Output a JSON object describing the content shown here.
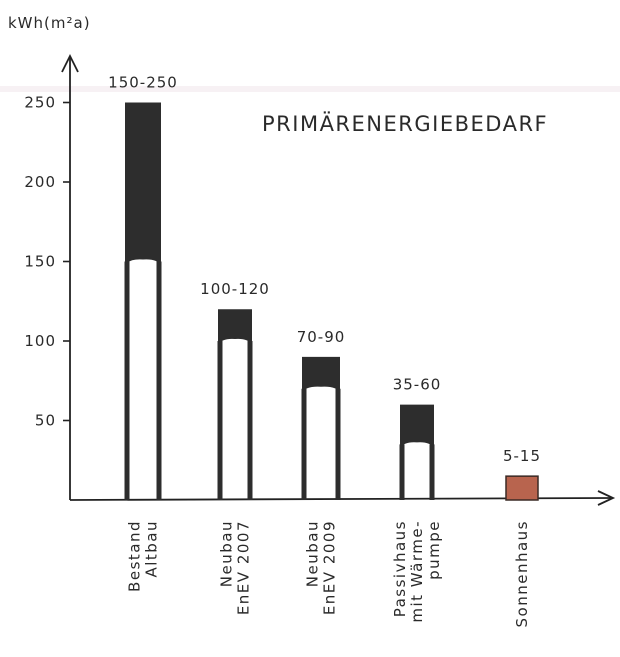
{
  "chart_data": {
    "type": "bar",
    "title": "PRIMÄRENERGIEBEDARF",
    "ylabel": "kWh(m²a)",
    "xlabel": "",
    "ylim": [
      0,
      275
    ],
    "yticks": [
      50,
      100,
      150,
      200,
      250
    ],
    "grid": false,
    "categories": [
      {
        "lines": [
          "Bestand",
          "Altbau"
        ]
      },
      {
        "lines": [
          "Neubau",
          "EnEV 2007"
        ]
      },
      {
        "lines": [
          "Neubau",
          "EnEV 2009"
        ]
      },
      {
        "lines": [
          "Passivhaus",
          "mit Wärme-",
          "pumpe"
        ]
      },
      {
        "lines": [
          "Sonnenhaus"
        ]
      }
    ],
    "ranges": [
      {
        "low": 150,
        "high": 250,
        "label": "150-250"
      },
      {
        "low": 100,
        "high": 120,
        "label": "100-120"
      },
      {
        "low": 70,
        "high": 90,
        "label": "70-90"
      },
      {
        "low": 35,
        "high": 60,
        "label": "35-60"
      },
      {
        "low": 5,
        "high": 15,
        "label": "5-15"
      }
    ],
    "colors": {
      "bar": "#2d2d2d",
      "highlight": "#b8644e",
      "title": "#b8644e",
      "axis": "#222222",
      "text": "#2a2a2a"
    },
    "highlight_index": 4
  }
}
